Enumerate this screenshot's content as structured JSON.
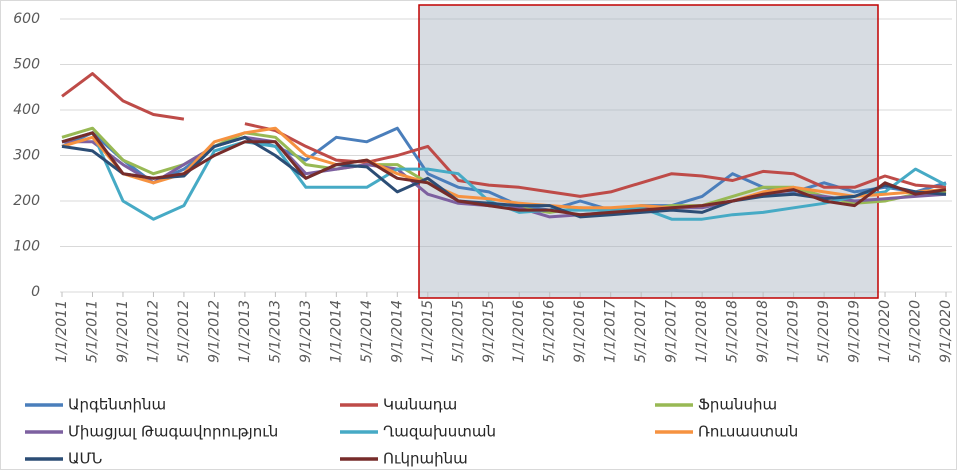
{
  "chart_data": {
    "type": "line",
    "categories": [
      "1/1/2011",
      "5/1/2011",
      "9/1/2011",
      "1/1/2012",
      "5/1/2012",
      "9/1/2012",
      "1/1/2013",
      "5/1/2013",
      "9/1/2013",
      "1/1/2014",
      "5/1/2014",
      "9/1/2014",
      "1/1/2015",
      "5/1/2015",
      "9/1/2015",
      "1/1/2016",
      "5/1/2016",
      "9/1/2016",
      "1/1/2017",
      "5/1/2017",
      "9/1/2017",
      "1/1/2018",
      "5/1/2018",
      "9/1/2018",
      "1/1/2019",
      "5/1/2019",
      "9/1/2019",
      "1/1/2020",
      "5/1/2020",
      "9/1/2020"
    ],
    "ylim": [
      0,
      600
    ],
    "yticks": [
      0,
      100,
      200,
      300,
      400,
      500,
      600
    ],
    "grid": true,
    "series": [
      {
        "name": "Արգենտինա",
        "color": "#4a7ebb",
        "values": [
          320,
          350,
          290,
          240,
          270,
          320,
          340,
          320,
          290,
          340,
          330,
          360,
          260,
          230,
          220,
          190,
          180,
          200,
          180,
          190,
          190,
          210,
          260,
          230,
          220,
          240,
          220,
          230,
          220,
          240
        ]
      },
      {
        "name": "Կանադա",
        "color": "#be4b48",
        "values": [
          430,
          480,
          420,
          390,
          380,
          null,
          370,
          355,
          320,
          290,
          285,
          300,
          320,
          245,
          235,
          230,
          220,
          210,
          220,
          240,
          260,
          255,
          245,
          265,
          260,
          230,
          230,
          255,
          235,
          230
        ]
      },
      {
        "name": "Ֆրանսիա",
        "color": "#98b954",
        "values": [
          340,
          360,
          290,
          260,
          280,
          320,
          350,
          340,
          280,
          270,
          280,
          280,
          240,
          200,
          190,
          185,
          175,
          185,
          180,
          180,
          190,
          190,
          210,
          230,
          230,
          210,
          195,
          200,
          215,
          220
        ]
      },
      {
        "name": "Միացյալ Թագավորություն",
        "color": "#7d60a0",
        "values": [
          330,
          330,
          280,
          240,
          280,
          320,
          340,
          330,
          260,
          270,
          280,
          270,
          215,
          195,
          190,
          185,
          165,
          170,
          175,
          185,
          185,
          185,
          200,
          215,
          215,
          210,
          200,
          205,
          210,
          215
        ]
      },
      {
        "name": "Ղազախստան",
        "color": "#46aac5",
        "values": [
          330,
          350,
          200,
          160,
          190,
          310,
          330,
          320,
          230,
          230,
          230,
          270,
          270,
          260,
          200,
          175,
          180,
          180,
          180,
          185,
          160,
          160,
          170,
          175,
          185,
          195,
          210,
          220,
          270,
          235
        ]
      },
      {
        "name": "Ռուսաստան",
        "color": "#f69240",
        "values": [
          320,
          340,
          260,
          240,
          260,
          330,
          350,
          360,
          300,
          280,
          290,
          260,
          240,
          210,
          205,
          195,
          190,
          185,
          185,
          190,
          185,
          190,
          200,
          220,
          230,
          220,
          210,
          215,
          220,
          225
        ]
      },
      {
        "name": "ԱՄՆ",
        "color": "#2c4d75",
        "values": [
          320,
          310,
          260,
          250,
          255,
          320,
          340,
          300,
          250,
          280,
          275,
          220,
          250,
          200,
          195,
          190,
          190,
          165,
          170,
          175,
          180,
          175,
          200,
          210,
          215,
          205,
          210,
          235,
          220,
          215
        ]
      },
      {
        "name": "Ուկրաինա",
        "color": "#772c2a",
        "values": [
          330,
          350,
          260,
          250,
          260,
          300,
          330,
          330,
          250,
          280,
          290,
          250,
          240,
          200,
          190,
          180,
          180,
          170,
          175,
          180,
          185,
          190,
          200,
          215,
          225,
          200,
          190,
          240,
          215,
          225
        ]
      }
    ]
  }
}
